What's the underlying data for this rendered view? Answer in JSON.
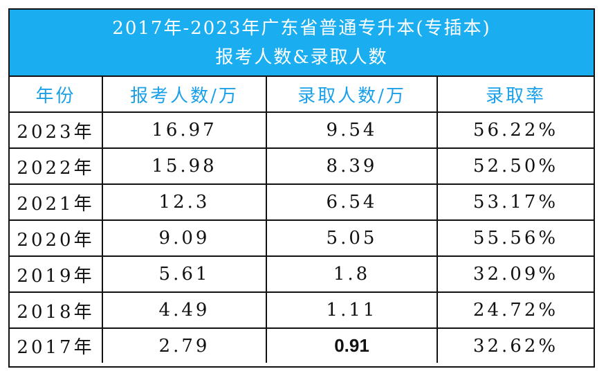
{
  "title": {
    "line1": "2017年-2023年广东省普通专升本(专插本)",
    "line2": "报考人数&录取人数"
  },
  "columns": [
    "年份",
    "报考人数/万",
    "录取人数/万",
    "录取率"
  ],
  "rows": [
    {
      "year": "2023年",
      "applicants": "16.97",
      "admitted": "9.54",
      "rate": "56.22%"
    },
    {
      "year": "2022年",
      "applicants": "15.98",
      "admitted": "8.39",
      "rate": "52.50%"
    },
    {
      "year": "2021年",
      "applicants": "12.3",
      "admitted": "6.54",
      "rate": "53.17%"
    },
    {
      "year": "2020年",
      "applicants": "9.09",
      "admitted": "5.05",
      "rate": "55.56%"
    },
    {
      "year": "2019年",
      "applicants": "5.61",
      "admitted": "1.8",
      "rate": "32.09%"
    },
    {
      "year": "2018年",
      "applicants": "4.49",
      "admitted": "1.11",
      "rate": "24.72%"
    },
    {
      "year": "2017年",
      "applicants": "2.79",
      "admitted": "0.91",
      "rate": "32.62%"
    }
  ],
  "colors": {
    "header_bg": "#1aaef0",
    "header_text": "#ffffff",
    "column_header_text": "#1aa0e8"
  }
}
